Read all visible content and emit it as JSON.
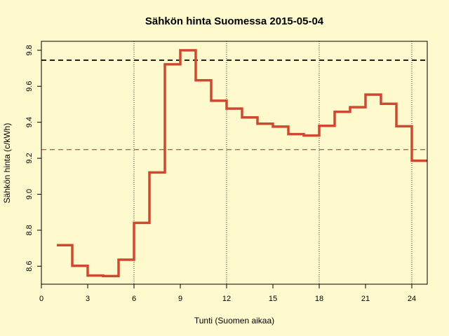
{
  "chart_data": {
    "type": "line",
    "step": true,
    "title": "Sähkön hinta Suomessa 2015-05-04",
    "xlabel": "Tunti (Suomen aikaa)",
    "ylabel": "Sähkön hinta (c/kWh)",
    "xlim": [
      0,
      25
    ],
    "ylim": [
      8.5,
      9.85
    ],
    "xticks": [
      0,
      3,
      6,
      9,
      12,
      15,
      18,
      21,
      24
    ],
    "yticks": [
      8.6,
      8.8,
      9.0,
      9.2,
      9.4,
      9.6,
      9.8
    ],
    "vlines": [
      6,
      12,
      18,
      24
    ],
    "series": [
      {
        "color": "#cc4a30",
        "x": [
          1,
          2,
          3,
          4,
          5,
          6,
          7,
          8,
          9,
          10,
          11,
          12,
          13,
          14,
          15,
          16,
          17,
          18,
          19,
          20,
          21,
          22,
          23,
          24
        ],
        "values": [
          8.717,
          8.602,
          8.548,
          8.545,
          8.636,
          8.841,
          9.121,
          9.722,
          9.8,
          9.633,
          9.52,
          9.476,
          9.427,
          9.392,
          9.376,
          9.334,
          9.326,
          9.38,
          9.458,
          9.484,
          9.554,
          9.503,
          9.378,
          9.186
        ]
      }
    ],
    "hlines": [
      {
        "y": 9.745,
        "color": "#222222",
        "style": "dashed"
      },
      {
        "y": 9.248,
        "color": "#d9534f",
        "style": "dashed"
      }
    ],
    "grid": "vertical dotted"
  }
}
